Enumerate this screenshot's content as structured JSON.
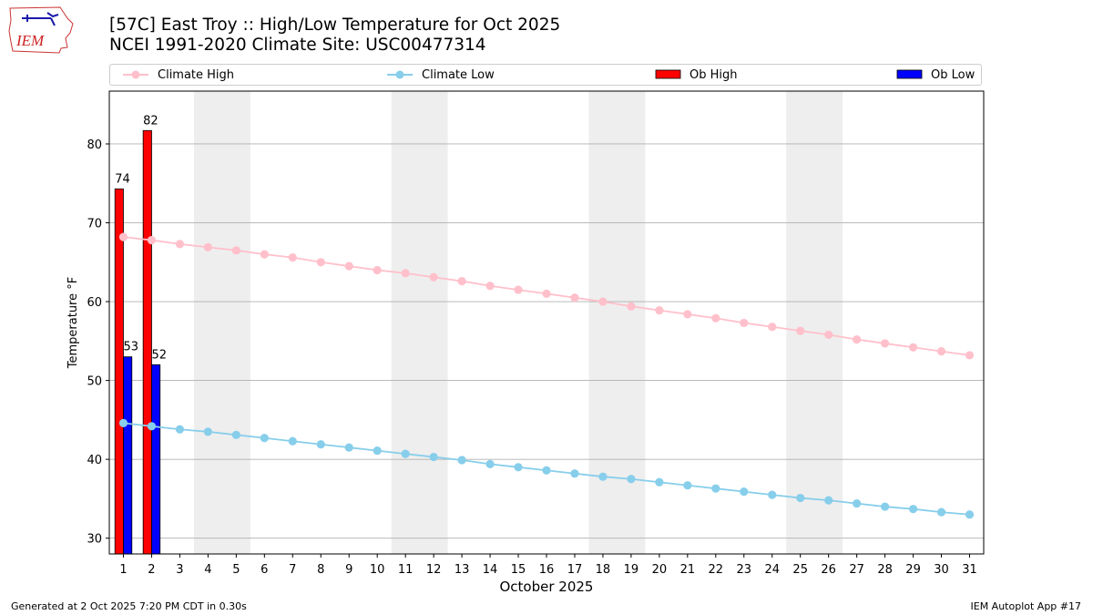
{
  "header": {
    "title": "[57C] East Troy :: High/Low Temperature for Oct 2025",
    "subtitle": "NCEI 1991-2020 Climate Site: USC00477314",
    "logo_text": "IEM"
  },
  "footer": {
    "left": "Generated at 2 Oct 2025 7:20 PM CDT in 0.30s",
    "right": "IEM Autoplot App #17"
  },
  "legend": {
    "climate_high": "Climate High",
    "climate_low": "Climate Low",
    "ob_high": "Ob High",
    "ob_low": "Ob Low"
  },
  "colors": {
    "climate_high": "#ffc0cb",
    "climate_low": "#87ceeb",
    "ob_high": "#ff0000",
    "ob_low": "#0000ff",
    "weekend_shade": "#eeeeee",
    "grid": "#b0b0b0"
  },
  "chart_data": {
    "type": "bar",
    "title": "[57C] East Troy :: High/Low Temperature for Oct 2025",
    "xlabel": "October 2025",
    "ylabel": "Temperature °F",
    "x": [
      1,
      2,
      3,
      4,
      5,
      6,
      7,
      8,
      9,
      10,
      11,
      12,
      13,
      14,
      15,
      16,
      17,
      18,
      19,
      20,
      21,
      22,
      23,
      24,
      25,
      26,
      27,
      28,
      29,
      30,
      31
    ],
    "xlim": [
      0.5,
      31.5
    ],
    "ylim": [
      28,
      86.7
    ],
    "yticks": [
      30,
      40,
      50,
      60,
      70,
      80
    ],
    "grid": "horizontal",
    "weekend_shading": [
      [
        3.5,
        5.5
      ],
      [
        10.5,
        12.5
      ],
      [
        17.5,
        19.5
      ],
      [
        24.5,
        26.5
      ]
    ],
    "series": [
      {
        "name": "Climate High",
        "type": "line",
        "values": [
          68.2,
          67.8,
          67.3,
          66.9,
          66.5,
          66.0,
          65.6,
          65.0,
          64.5,
          64.0,
          63.6,
          63.1,
          62.6,
          62.0,
          61.5,
          61.0,
          60.5,
          60.0,
          59.4,
          58.9,
          58.4,
          57.9,
          57.3,
          56.8,
          56.3,
          55.8,
          55.2,
          54.7,
          54.2,
          53.7,
          53.2
        ]
      },
      {
        "name": "Climate Low",
        "type": "line",
        "values": [
          44.6,
          44.2,
          43.8,
          43.5,
          43.1,
          42.7,
          42.3,
          41.9,
          41.5,
          41.1,
          40.7,
          40.3,
          39.9,
          39.4,
          39.0,
          38.6,
          38.2,
          37.8,
          37.5,
          37.1,
          36.7,
          36.3,
          35.9,
          35.5,
          35.1,
          34.8,
          34.4,
          34.0,
          33.7,
          33.3,
          33.0
        ]
      },
      {
        "name": "Ob High",
        "type": "bar",
        "x": [
          1,
          2
        ],
        "values": [
          74.3,
          81.7
        ],
        "labels": [
          "74",
          "82"
        ]
      },
      {
        "name": "Ob Low",
        "type": "bar",
        "x": [
          1,
          2
        ],
        "values": [
          53.0,
          52.0
        ],
        "labels": [
          "53",
          "52"
        ]
      }
    ]
  }
}
